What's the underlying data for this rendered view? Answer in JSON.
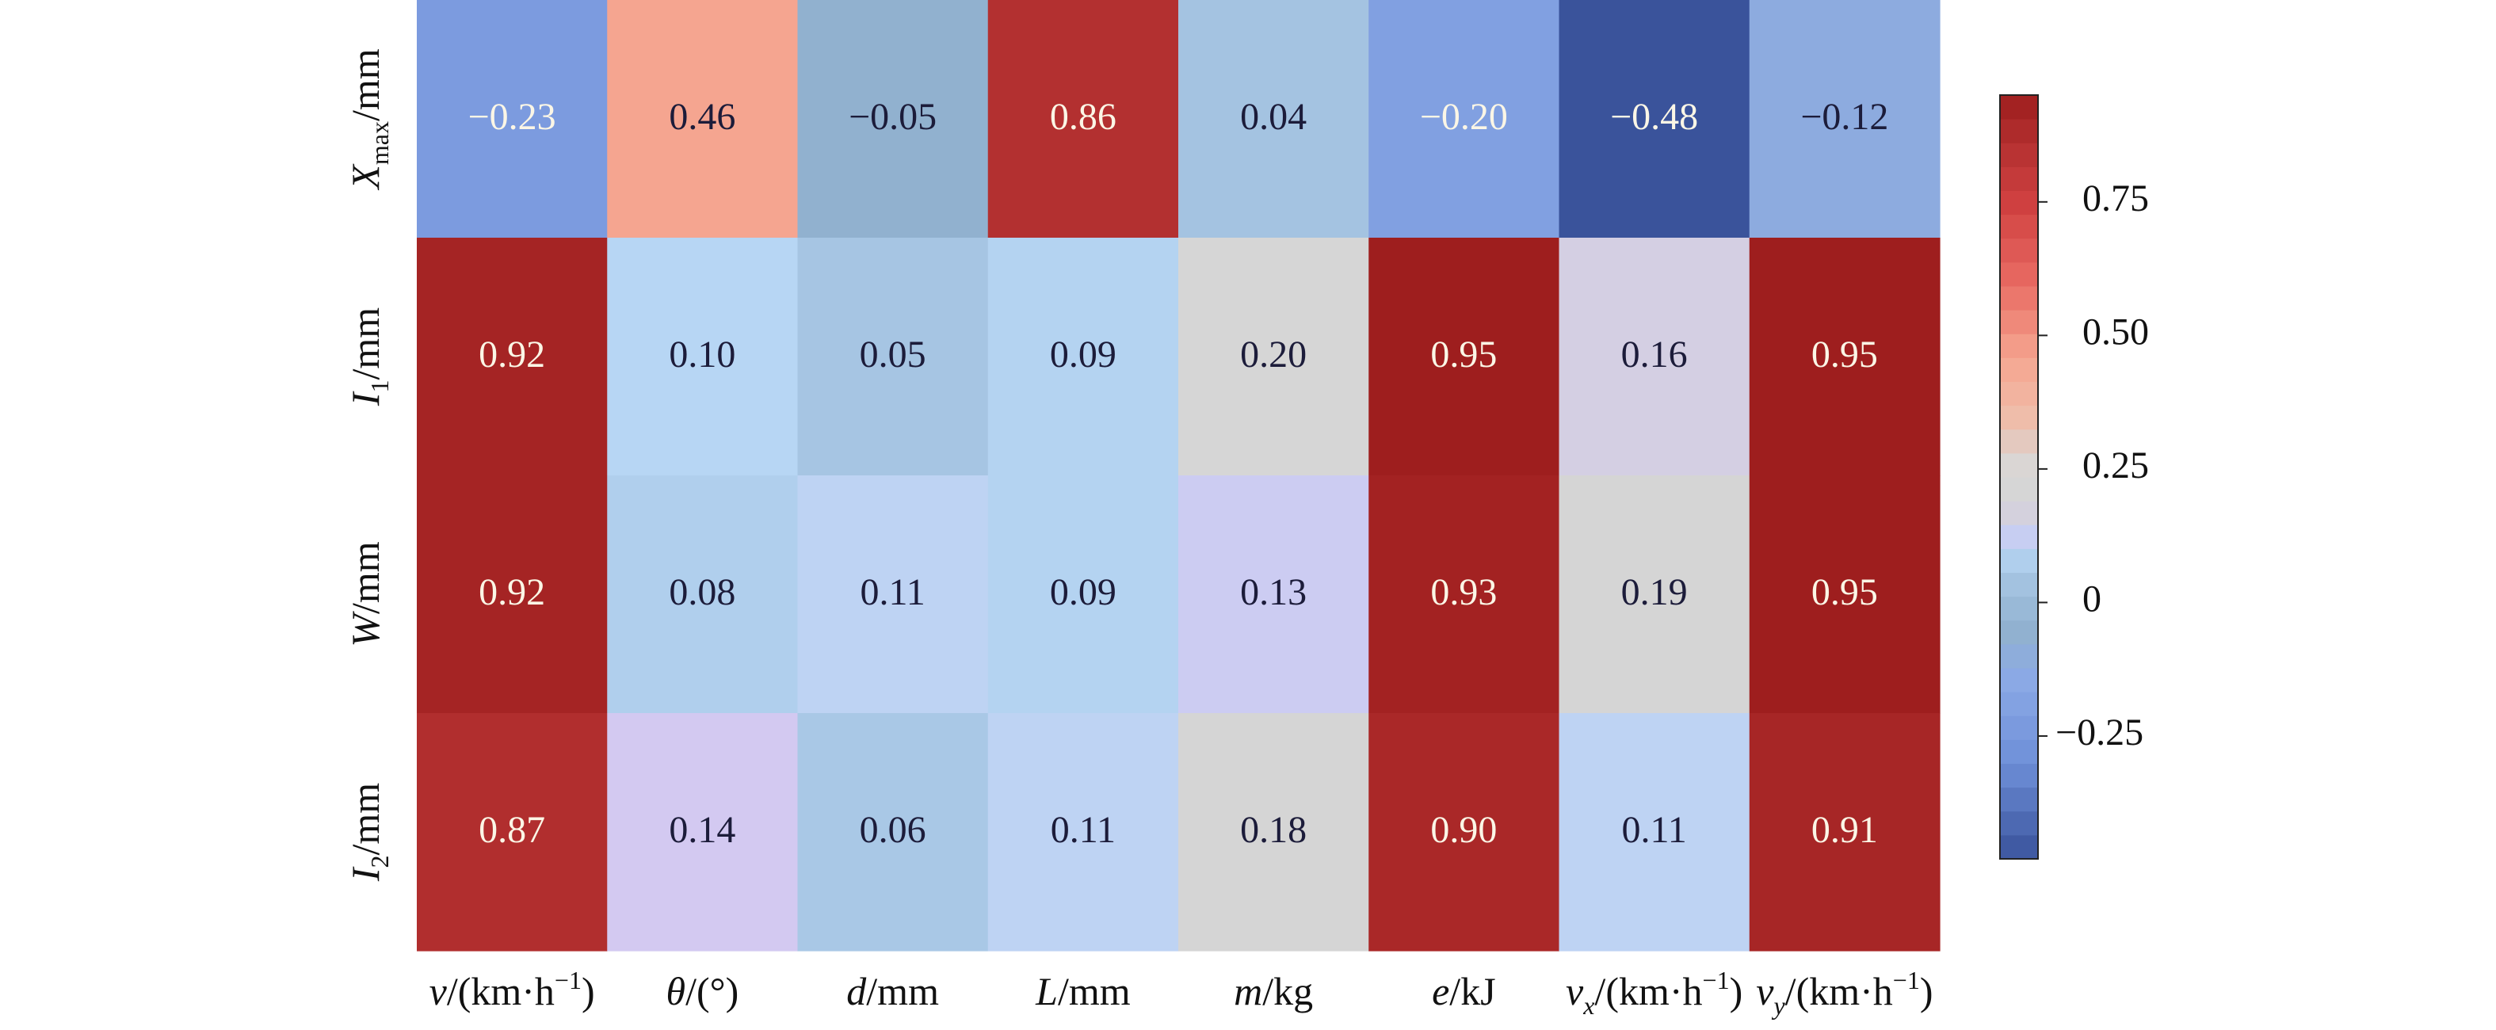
{
  "chart_data": {
    "type": "heatmap",
    "title": "",
    "xlabel": "",
    "ylabel": "",
    "x_categories": [
      {
        "main": "v",
        "sub": "",
        "unit": "/(km·h",
        "sup": "−1",
        "close": ")"
      },
      {
        "main": "θ",
        "sub": "",
        "unit": "/(°)",
        "sup": "",
        "close": ""
      },
      {
        "main": "d",
        "sub": "",
        "unit": "/mm",
        "sup": "",
        "close": ""
      },
      {
        "main": "L",
        "sub": "",
        "unit": "/mm",
        "sup": "",
        "close": ""
      },
      {
        "main": "m",
        "sub": "",
        "unit": "/kg",
        "sup": "",
        "close": ""
      },
      {
        "main": "e",
        "sub": "",
        "unit": "/kJ",
        "sup": "",
        "close": ""
      },
      {
        "main": "v",
        "sub": "x",
        "unit": "/(km·h",
        "sup": "−1",
        "close": ")"
      },
      {
        "main": "v",
        "sub": "y",
        "unit": "/(km·h",
        "sup": "−1",
        "close": ")"
      }
    ],
    "y_categories": [
      {
        "main": "X",
        "sub": "max",
        "unit": "/mm"
      },
      {
        "main": "I",
        "sub": "1",
        "unit": "/mm"
      },
      {
        "main": "W",
        "sub": "",
        "unit": "/mm"
      },
      {
        "main": "I",
        "sub": "2",
        "unit": "/mm"
      }
    ],
    "values": [
      [
        -0.23,
        0.46,
        -0.05,
        0.86,
        0.04,
        -0.2,
        -0.48,
        -0.12
      ],
      [
        0.92,
        0.1,
        0.05,
        0.09,
        0.2,
        0.95,
        0.16,
        0.95
      ],
      [
        0.92,
        0.08,
        0.11,
        0.09,
        0.13,
        0.93,
        0.19,
        0.95
      ],
      [
        0.87,
        0.14,
        0.06,
        0.11,
        0.18,
        0.9,
        0.11,
        0.91
      ]
    ],
    "value_labels": [
      [
        "−0.23",
        "0.46",
        "−0.05",
        "0.86",
        "0.04",
        "−0.20",
        "−0.48",
        "−0.12"
      ],
      [
        "0.92",
        "0.10",
        "0.05",
        "0.09",
        "0.20",
        "0.95",
        "0.16",
        "0.95"
      ],
      [
        "0.92",
        "0.08",
        "0.11",
        "0.09",
        "0.13",
        "0.93",
        "0.19",
        "0.95"
      ],
      [
        "0.87",
        "0.14",
        "0.06",
        "0.11",
        "0.18",
        "0.90",
        "0.11",
        "0.91"
      ]
    ],
    "colorbar": {
      "range": [
        -0.48,
        0.95
      ],
      "ticks": [
        -0.25,
        0,
        0.25,
        0.5,
        0.75
      ],
      "tick_labels": [
        "−0.25",
        "0",
        "0.25",
        "0.50",
        "0.75"
      ],
      "levels": 32,
      "placement": "right"
    },
    "colormap": [
      [
        -0.48,
        "#3a539b"
      ],
      [
        -0.3,
        "#6e8fd8"
      ],
      [
        -0.15,
        "#8ba9e6"
      ],
      [
        -0.05,
        "#91b1cf"
      ],
      [
        0.05,
        "#a6c5e3"
      ],
      [
        0.1,
        "#b7d6f4"
      ],
      [
        0.14,
        "#d3c9f1"
      ],
      [
        0.18,
        "#d5d5d5"
      ],
      [
        0.25,
        "#d8d8d8"
      ],
      [
        0.35,
        "#f0bca8"
      ],
      [
        0.46,
        "#f5a590"
      ],
      [
        0.6,
        "#e86a62"
      ],
      [
        0.75,
        "#cf4040"
      ],
      [
        0.86,
        "#b33030"
      ],
      [
        0.95,
        "#9e1e1e"
      ]
    ],
    "grid": false
  }
}
